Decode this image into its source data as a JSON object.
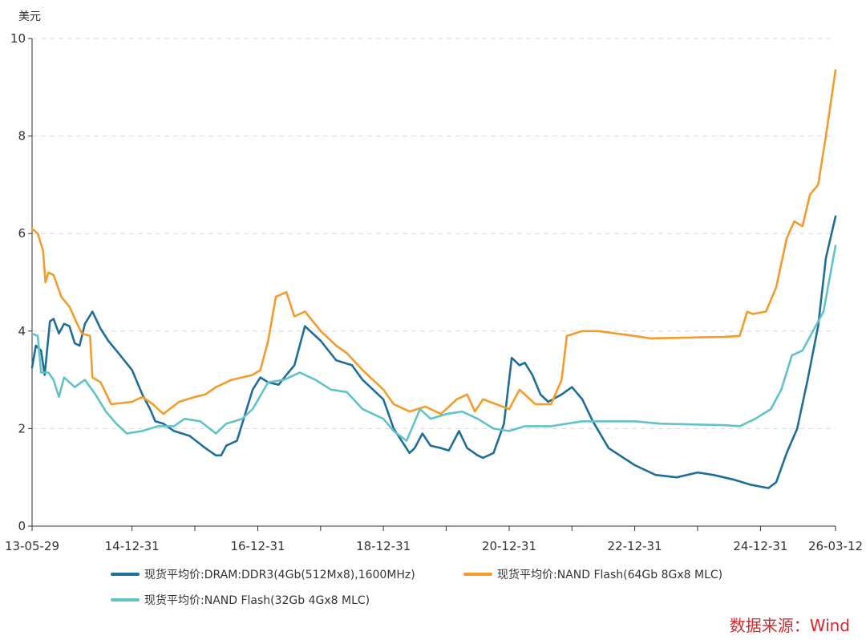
{
  "chart_data": {
    "type": "line",
    "unit_label": "美元",
    "y_ticks": [
      "0",
      "2",
      "4",
      "6",
      "8",
      "10"
    ],
    "ylim": [
      0,
      10
    ],
    "x_range": [
      "2013-05-29",
      "2026-03-12"
    ],
    "x_ticks": [
      {
        "date": "2013-05-29",
        "label": "13-05-29"
      },
      {
        "date": "2014-12-31",
        "label": "14-12-31"
      },
      {
        "date": "2016-12-31",
        "label": "16-12-31"
      },
      {
        "date": "2018-12-31",
        "label": "18-12-31"
      },
      {
        "date": "2020-12-31",
        "label": "20-12-31"
      },
      {
        "date": "2022-12-31",
        "label": "22-12-31"
      },
      {
        "date": "2024-12-31",
        "label": "24-12-31"
      },
      {
        "date": "2026-03-12",
        "label": "26-03-12"
      }
    ],
    "minor_tick_dates": [
      "2015-12-31",
      "2017-12-31",
      "2019-12-31",
      "2021-12-31",
      "2023-12-31"
    ],
    "grid": "horizontal-dashed",
    "legend_placement": "bottom",
    "source": "数据来源：Wind",
    "series": [
      {
        "name": "现货平均价:DRAM:DDR3(4Gb(512Mx8),1600MHz)",
        "color": "#1f6e98",
        "points": [
          [
            "2013-05-29",
            3.25
          ],
          [
            "2013-06-20",
            3.7
          ],
          [
            "2013-07-20",
            3.6
          ],
          [
            "2013-08-10",
            3.1
          ],
          [
            "2013-09-10",
            4.2
          ],
          [
            "2013-10-01",
            4.25
          ],
          [
            "2013-11-01",
            3.95
          ],
          [
            "2013-12-01",
            4.15
          ],
          [
            "2014-01-01",
            4.1
          ],
          [
            "2014-02-01",
            3.75
          ],
          [
            "2014-03-01",
            3.7
          ],
          [
            "2014-04-01",
            4.15
          ],
          [
            "2014-05-15",
            4.4
          ],
          [
            "2014-07-01",
            4.05
          ],
          [
            "2014-08-15",
            3.8
          ],
          [
            "2014-10-01",
            3.6
          ],
          [
            "2014-12-31",
            3.2
          ],
          [
            "2015-03-01",
            2.7
          ],
          [
            "2015-04-15",
            2.4
          ],
          [
            "2015-05-15",
            2.15
          ],
          [
            "2015-07-01",
            2.1
          ],
          [
            "2015-09-01",
            1.95
          ],
          [
            "2015-12-01",
            1.85
          ],
          [
            "2016-03-01",
            1.6
          ],
          [
            "2016-05-01",
            1.45
          ],
          [
            "2016-06-01",
            1.45
          ],
          [
            "2016-07-01",
            1.65
          ],
          [
            "2016-09-01",
            1.75
          ],
          [
            "2016-12-01",
            2.8
          ],
          [
            "2017-01-15",
            3.05
          ],
          [
            "2017-03-01",
            2.95
          ],
          [
            "2017-05-01",
            2.9
          ],
          [
            "2017-06-15",
            3.1
          ],
          [
            "2017-08-01",
            3.3
          ],
          [
            "2017-10-01",
            4.1
          ],
          [
            "2018-01-01",
            3.8
          ],
          [
            "2018-04-01",
            3.4
          ],
          [
            "2018-07-01",
            3.3
          ],
          [
            "2018-09-01",
            3.0
          ],
          [
            "2018-12-31",
            2.6
          ],
          [
            "2019-03-01",
            2.0
          ],
          [
            "2019-06-01",
            1.5
          ],
          [
            "2019-07-01",
            1.6
          ],
          [
            "2019-08-15",
            1.9
          ],
          [
            "2019-10-01",
            1.65
          ],
          [
            "2019-12-01",
            1.6
          ],
          [
            "2020-01-15",
            1.55
          ],
          [
            "2020-03-15",
            1.95
          ],
          [
            "2020-05-01",
            1.6
          ],
          [
            "2020-07-01",
            1.45
          ],
          [
            "2020-08-01",
            1.4
          ],
          [
            "2020-10-01",
            1.5
          ],
          [
            "2020-12-01",
            2.1
          ],
          [
            "2021-01-15",
            3.45
          ],
          [
            "2021-03-01",
            3.3
          ],
          [
            "2021-04-01",
            3.35
          ],
          [
            "2021-05-15",
            3.1
          ],
          [
            "2021-07-01",
            2.7
          ],
          [
            "2021-08-15",
            2.55
          ],
          [
            "2021-11-01",
            2.7
          ],
          [
            "2021-12-31",
            2.85
          ],
          [
            "2022-03-01",
            2.6
          ],
          [
            "2022-05-01",
            2.15
          ],
          [
            "2022-08-01",
            1.6
          ],
          [
            "2022-12-31",
            1.25
          ],
          [
            "2023-05-01",
            1.05
          ],
          [
            "2023-09-01",
            1.0
          ],
          [
            "2024-01-01",
            1.1
          ],
          [
            "2024-04-01",
            1.05
          ],
          [
            "2024-08-01",
            0.95
          ],
          [
            "2024-11-01",
            0.85
          ],
          [
            "2025-02-15",
            0.78
          ],
          [
            "2025-04-01",
            0.9
          ],
          [
            "2025-06-01",
            1.5
          ],
          [
            "2025-08-01",
            2.0
          ],
          [
            "2025-10-01",
            3.0
          ],
          [
            "2025-12-01",
            4.1
          ],
          [
            "2026-01-15",
            5.5
          ],
          [
            "2026-03-12",
            6.35
          ]
        ]
      },
      {
        "name": "现货平均价:NAND Flash(64Gb 8Gx8 MLC)",
        "color": "#f39c2b",
        "points": [
          [
            "2013-05-29",
            6.1
          ],
          [
            "2013-07-01",
            6.0
          ],
          [
            "2013-08-01",
            5.65
          ],
          [
            "2013-08-15",
            5.0
          ],
          [
            "2013-09-01",
            5.2
          ],
          [
            "2013-10-01",
            5.15
          ],
          [
            "2013-11-15",
            4.7
          ],
          [
            "2014-01-01",
            4.5
          ],
          [
            "2014-02-15",
            4.15
          ],
          [
            "2014-03-15",
            3.95
          ],
          [
            "2014-05-01",
            3.9
          ],
          [
            "2014-05-15",
            3.05
          ],
          [
            "2014-07-01",
            2.95
          ],
          [
            "2014-09-01",
            2.5
          ],
          [
            "2014-12-31",
            2.55
          ],
          [
            "2015-03-01",
            2.65
          ],
          [
            "2015-05-01",
            2.5
          ],
          [
            "2015-07-01",
            2.3
          ],
          [
            "2015-10-01",
            2.55
          ],
          [
            "2016-01-01",
            2.65
          ],
          [
            "2016-03-01",
            2.7
          ],
          [
            "2016-05-01",
            2.85
          ],
          [
            "2016-08-01",
            3.0
          ],
          [
            "2016-12-01",
            3.1
          ],
          [
            "2017-01-15",
            3.2
          ],
          [
            "2017-03-01",
            3.8
          ],
          [
            "2017-04-15",
            4.7
          ],
          [
            "2017-06-15",
            4.8
          ],
          [
            "2017-08-01",
            4.3
          ],
          [
            "2017-10-01",
            4.4
          ],
          [
            "2018-01-01",
            4.0
          ],
          [
            "2018-04-01",
            3.7
          ],
          [
            "2018-06-01",
            3.55
          ],
          [
            "2018-09-01",
            3.2
          ],
          [
            "2018-12-31",
            2.8
          ],
          [
            "2019-03-01",
            2.5
          ],
          [
            "2019-06-01",
            2.35
          ],
          [
            "2019-09-01",
            2.45
          ],
          [
            "2019-12-01",
            2.3
          ],
          [
            "2020-03-01",
            2.6
          ],
          [
            "2020-05-01",
            2.7
          ],
          [
            "2020-06-15",
            2.35
          ],
          [
            "2020-08-01",
            2.6
          ],
          [
            "2020-12-31",
            2.4
          ],
          [
            "2021-03-01",
            2.8
          ],
          [
            "2021-06-01",
            2.5
          ],
          [
            "2021-09-01",
            2.5
          ],
          [
            "2021-11-01",
            3.0
          ],
          [
            "2021-12-01",
            3.9
          ],
          [
            "2022-03-01",
            4.0
          ],
          [
            "2022-06-01",
            4.0
          ],
          [
            "2022-12-31",
            3.9
          ],
          [
            "2023-04-01",
            3.85
          ],
          [
            "2023-12-31",
            3.87
          ],
          [
            "2024-06-01",
            3.88
          ],
          [
            "2024-09-01",
            3.9
          ],
          [
            "2024-10-15",
            4.4
          ],
          [
            "2024-11-15",
            4.35
          ],
          [
            "2025-02-01",
            4.4
          ],
          [
            "2025-04-01",
            4.9
          ],
          [
            "2025-06-01",
            5.9
          ],
          [
            "2025-07-15",
            6.25
          ],
          [
            "2025-09-01",
            6.15
          ],
          [
            "2025-10-15",
            6.8
          ],
          [
            "2025-12-01",
            7.0
          ],
          [
            "2026-01-15",
            8.0
          ],
          [
            "2026-03-12",
            9.35
          ]
        ]
      },
      {
        "name": "现货平均价:NAND Flash(32Gb 4Gx8 MLC)",
        "color": "#5fc3c8",
        "points": [
          [
            "2013-05-29",
            3.95
          ],
          [
            "2013-07-01",
            3.9
          ],
          [
            "2013-07-20",
            3.15
          ],
          [
            "2013-09-01",
            3.15
          ],
          [
            "2013-10-01",
            3.0
          ],
          [
            "2013-11-01",
            2.65
          ],
          [
            "2013-12-01",
            3.05
          ],
          [
            "2014-02-01",
            2.85
          ],
          [
            "2014-04-01",
            3.0
          ],
          [
            "2014-06-01",
            2.7
          ],
          [
            "2014-08-01",
            2.35
          ],
          [
            "2014-10-01",
            2.1
          ],
          [
            "2014-12-01",
            1.9
          ],
          [
            "2015-03-01",
            1.95
          ],
          [
            "2015-06-01",
            2.05
          ],
          [
            "2015-09-01",
            2.05
          ],
          [
            "2015-11-01",
            2.2
          ],
          [
            "2016-02-01",
            2.15
          ],
          [
            "2016-05-01",
            1.9
          ],
          [
            "2016-07-01",
            2.1
          ],
          [
            "2016-10-01",
            2.2
          ],
          [
            "2016-12-01",
            2.4
          ],
          [
            "2017-03-01",
            2.95
          ],
          [
            "2017-06-01",
            3.0
          ],
          [
            "2017-09-01",
            3.15
          ],
          [
            "2017-12-01",
            3.0
          ],
          [
            "2018-03-01",
            2.8
          ],
          [
            "2018-06-01",
            2.75
          ],
          [
            "2018-09-01",
            2.4
          ],
          [
            "2018-12-31",
            2.2
          ],
          [
            "2019-03-01",
            1.95
          ],
          [
            "2019-05-15",
            1.75
          ],
          [
            "2019-08-01",
            2.4
          ],
          [
            "2019-10-01",
            2.2
          ],
          [
            "2020-01-01",
            2.3
          ],
          [
            "2020-04-01",
            2.35
          ],
          [
            "2020-07-01",
            2.2
          ],
          [
            "2020-10-01",
            2.0
          ],
          [
            "2020-12-31",
            1.95
          ],
          [
            "2021-04-01",
            2.05
          ],
          [
            "2021-09-01",
            2.05
          ],
          [
            "2022-03-01",
            2.15
          ],
          [
            "2022-12-31",
            2.15
          ],
          [
            "2023-06-01",
            2.1
          ],
          [
            "2024-06-01",
            2.07
          ],
          [
            "2024-09-01",
            2.05
          ],
          [
            "2024-12-01",
            2.2
          ],
          [
            "2025-03-01",
            2.4
          ],
          [
            "2025-05-01",
            2.8
          ],
          [
            "2025-07-01",
            3.5
          ],
          [
            "2025-09-01",
            3.6
          ],
          [
            "2025-11-01",
            4.0
          ],
          [
            "2026-01-01",
            4.4
          ],
          [
            "2026-03-12",
            5.75
          ]
        ]
      }
    ]
  }
}
